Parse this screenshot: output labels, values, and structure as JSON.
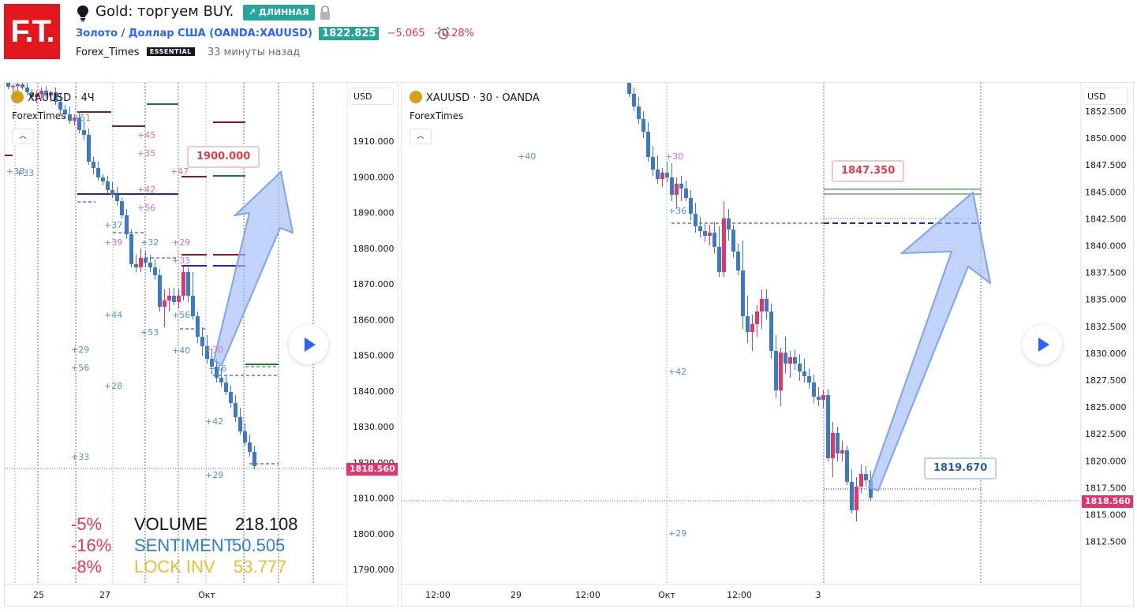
{
  "header": {
    "logo_text": "F.T.",
    "title": "Gold: торгуем BUY.",
    "direction_badge": "↗ ДЛИННАЯ",
    "symbol_name": "Золото / Доллар США",
    "symbol_ticker": "(OANDA:XAUUSD)",
    "last_price": "1822.825",
    "change": "−5.065",
    "change_pct": "−0.28%",
    "author": "Forex_Times",
    "author_plan": "ESSENTIAL",
    "time_ago": "33 минуты назад",
    "colors": {
      "up": "#26a69a",
      "down": "#f23645",
      "brand": "#e3161e",
      "link": "#2962ff"
    },
    "icons": [
      "lightbulb-icon",
      "lock-icon",
      "alarm-clock-icon",
      "trend-up-arrow-icon"
    ]
  },
  "left_chart": {
    "legend": "XAUUSD · 4Ч",
    "indicator": "ForexTimes",
    "currency": "USD",
    "current_price_tag": "1818.560",
    "target_callout": "1900.000",
    "y_ticks": [
      "1910.000",
      "1900.000",
      "1890.000",
      "1880.000",
      "1870.000",
      "1860.000",
      "1850.000",
      "1840.000",
      "1830.000",
      "1820.000",
      "1810.000",
      "1800.000",
      "1790.000"
    ],
    "x_ticks": [
      "25",
      "27",
      "Окт"
    ],
    "level_labels": [
      "+51",
      "+38",
      "+45",
      "+35",
      "+47",
      "+42",
      "+56",
      "+37",
      "+39",
      "+32",
      "+29",
      "+33",
      "+44",
      "+53",
      "+56",
      "+40",
      "+29",
      "+56",
      "+30",
      "+28",
      "+36",
      "+42",
      "+33",
      "+29",
      "+33"
    ],
    "stats": [
      {
        "pct": "-5%",
        "name": "VOLUME",
        "value": "218.108",
        "color": "#131722"
      },
      {
        "pct": "-16%",
        "name": "SENTIMENT",
        "value": "50.505",
        "color": "#2f7fd0"
      },
      {
        "pct": "-8%",
        "name": "LOCK INV",
        "value": "53.777",
        "color": "#e6c02f"
      }
    ]
  },
  "right_chart": {
    "legend": "XAUUSD · 30 · OANDA",
    "indicator": "ForexTimes",
    "currency": "USD",
    "current_price_tag": "1818.560",
    "target_callout": "1847.350",
    "entry_callout": "1819.670",
    "y_ticks": [
      "1852.500",
      "1850.000",
      "1847.500",
      "1845.000",
      "1842.500",
      "1840.000",
      "1837.500",
      "1835.000",
      "1832.500",
      "1830.000",
      "1827.500",
      "1825.000",
      "1822.500",
      "1820.000",
      "1817.500",
      "1815.000",
      "1812.500"
    ],
    "x_ticks": [
      "12:00",
      "29",
      "12:00",
      "Окт",
      "12:00",
      "3"
    ],
    "level_labels": [
      "+40",
      "+30",
      "+36",
      "+42",
      "+29"
    ]
  }
}
